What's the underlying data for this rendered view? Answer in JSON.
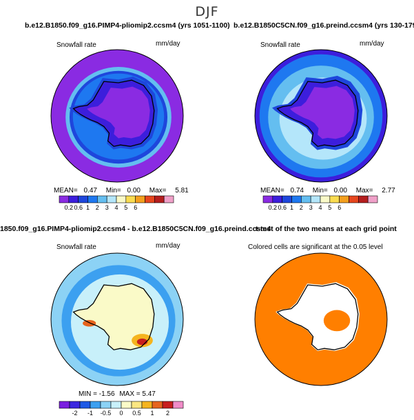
{
  "page": {
    "title": "DJF"
  },
  "colors": {
    "snow_levels": [
      "#8a2be2",
      "#3c1edc",
      "#1e46dc",
      "#1e78f0",
      "#64bef0",
      "#b4e6fa",
      "#fafac8",
      "#fadc50",
      "#f5a01e",
      "#e6461e",
      "#b41e1e",
      "#f0a0c8"
    ],
    "diff_levels": [
      "#7a1ee0",
      "#3c28e0",
      "#1e5ae6",
      "#3ca0f0",
      "#8cd2f5",
      "#c8f0fa",
      "#fafac8",
      "#fae682",
      "#f5b41e",
      "#e6641e",
      "#c81e1e",
      "#f08cc8"
    ],
    "significance": "#ff7f00"
  },
  "chart_data": [
    {
      "id": "panel-pliomip",
      "type": "map",
      "title": "b.e12.B1850.f09_g16.PIMP4-pliomip2.ccsm4 (yrs 1051-1100)",
      "variable": "Snowfall rate",
      "units": "mm/day",
      "stats": {
        "mean_label": "MEAN=",
        "mean": "0.47",
        "min_label": "Min=",
        "min": "0.00",
        "max_label": "Max=",
        "max": "5.81"
      },
      "colorbar_ticks": [
        "0.2",
        "0.6",
        "1",
        "2",
        "3",
        "4",
        "5",
        "6"
      ],
      "colorbar_tick_labels": [
        "0.2",
        "0.6",
        "1",
        "2",
        "3",
        "4",
        "5",
        "6"
      ]
    },
    {
      "id": "panel-preind",
      "type": "map",
      "title": "b.e12.B1850C5CN.f09_g16.preind.ccsm4 (yrs 130-179)",
      "variable": "Snowfall rate",
      "units": "mm/day",
      "stats": {
        "mean_label": "MEAN=",
        "mean": "0.74",
        "min_label": "Min=",
        "min": "0.00",
        "max_label": "Max=",
        "max": "2.77"
      },
      "colorbar_ticks": [
        "0.2",
        "0.6",
        "1",
        "2",
        "3",
        "4",
        "5",
        "6"
      ]
    },
    {
      "id": "panel-difference",
      "type": "map",
      "title": "1850.f09_g16.PIMP4-pliomip2.ccsm4 - b.e12.B1850C5CN.f09_g16.preind.ccsm4",
      "variable": "Snowfall rate",
      "units": "mm/day",
      "stats": {
        "min_label": "MIN =",
        "min": "-1.56",
        "max_label": "MAX =",
        "max": "5.47"
      },
      "colorbar_ticks": [
        "-2",
        "-1",
        "-0.5",
        "0",
        "0.5",
        "1",
        "2"
      ]
    },
    {
      "id": "panel-ttest",
      "type": "map",
      "title": "t-test of the two means at each grid point",
      "subtitle": "Colored cells are significant at the 0.05 level"
    }
  ]
}
